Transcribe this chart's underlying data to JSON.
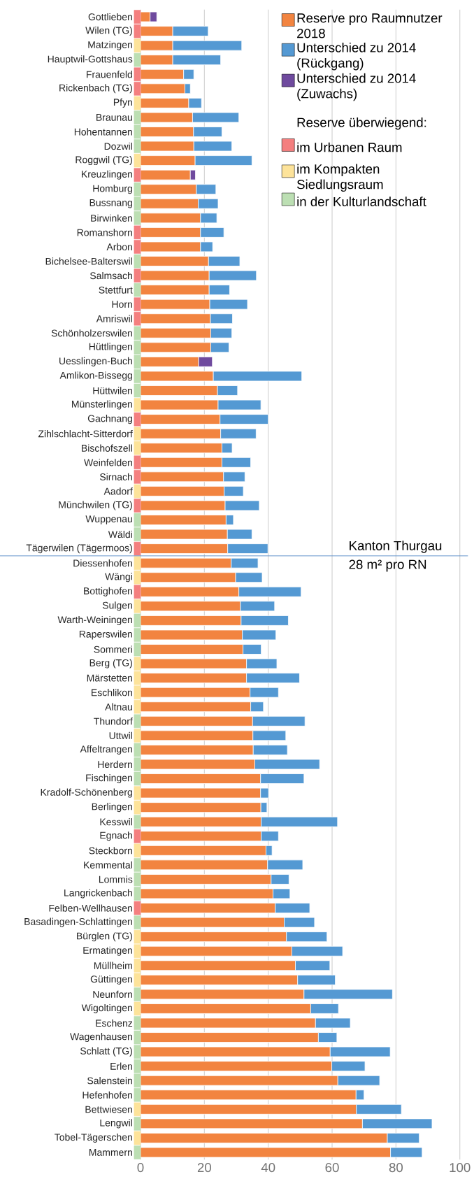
{
  "chart_data": {
    "type": "bar",
    "orientation": "horizontal",
    "stacked": true,
    "categories": [
      "Gottlieben",
      "Wilen (TG)",
      "Matzingen",
      "Hauptwil-Gottshaus",
      "Frauenfeld",
      "Rickenbach (TG)",
      "Pfyn",
      "Braunau",
      "Hohentannen",
      "Dozwil",
      "Roggwil (TG)",
      "Kreuzlingen",
      "Homburg",
      "Bussnang",
      "Birwinken",
      "Romanshorn",
      "Arbon",
      "Bichelsee-Balterswil",
      "Salmsach",
      "Stettfurt",
      "Horn",
      "Amriswil",
      "Schönholzerswilen",
      "Hüttlingen",
      "Uesslingen-Buch",
      "Amlikon-Bissegg",
      "Hüttwilen",
      "Münsterlingen",
      "Gachnang",
      "Zihlschlacht-Sitterdorf",
      "Bischofszell",
      "Weinfelden",
      "Sirnach",
      "Aadorf",
      "Münchwilen (TG)",
      "Wuppenau",
      "Wäldi",
      "Tägerwilen (Tägermoos)",
      "Diessenhofen",
      "Wängi",
      "Bottighofen",
      "Sulgen",
      "Warth-Weiningen",
      "Raperswilen",
      "Sommeri",
      "Berg (TG)",
      "Märstetten",
      "Eschlikon",
      "Altnau",
      "Thundorf",
      "Uttwil",
      "Affeltrangen",
      "Herdern",
      "Fischingen",
      "Kradolf-Schönenberg",
      "Berlingen",
      "Kesswil",
      "Egnach",
      "Steckborn",
      "Kemmental",
      "Lommis",
      "Langrickenbach",
      "Felben-Wellhausen",
      "Basadingen-Schlattingen",
      "Bürglen (TG)",
      "Ermatingen",
      "Müllheim",
      "Güttingen",
      "Neunforn",
      "Wigoltingen",
      "Eschenz",
      "Wagenhausen",
      "Schlatt (TG)",
      "Erlen",
      "Salenstein",
      "Hefenhofen",
      "Bettwiesen",
      "Lengwil",
      "Tobel-Tägerschen",
      "Mammern"
    ],
    "series": [
      {
        "name": "Reserve pro Raumnutzer 2018",
        "color": "#f28440",
        "values": [
          3.0,
          10.1,
          10.1,
          10.1,
          13.5,
          13.9,
          15.1,
          16.3,
          16.6,
          16.7,
          17.1,
          15.6,
          17.5,
          18.1,
          18.8,
          18.8,
          18.8,
          21.3,
          21.5,
          21.5,
          21.7,
          21.9,
          22.0,
          22.0,
          18.2,
          22.8,
          24.1,
          24.3,
          24.9,
          25.1,
          25.5,
          25.5,
          26.0,
          26.2,
          26.5,
          26.8,
          27.2,
          27.3,
          28.4,
          29.8,
          30.8,
          31.3,
          31.5,
          31.9,
          32.1,
          33.2,
          33.2,
          34.3,
          34.5,
          35.1,
          35.2,
          35.3,
          35.8,
          37.6,
          37.6,
          37.7,
          37.8,
          37.8,
          39.3,
          39.8,
          40.9,
          41.5,
          42.2,
          45.0,
          45.7,
          47.4,
          48.5,
          49.2,
          51.2,
          53.3,
          54.8,
          55.7,
          59.4,
          59.9,
          61.8,
          67.5,
          67.6,
          69.5,
          77.3,
          78.3
        ]
      },
      {
        "name": "Unterschied zu 2014 (Rückgang)",
        "color": "#5499d3",
        "values": [
          null,
          11.1,
          21.6,
          15.0,
          3.2,
          1.7,
          4.0,
          14.5,
          8.9,
          11.9,
          17.8,
          null,
          6.1,
          6.2,
          5.1,
          7.3,
          3.8,
          9.8,
          14.8,
          6.4,
          11.8,
          6.9,
          6.6,
          5.7,
          null,
          27.7,
          6.3,
          13.4,
          15.1,
          11.1,
          3.2,
          9.0,
          6.7,
          6.0,
          10.7,
          2.3,
          7.7,
          12.6,
          8.4,
          8.3,
          19.5,
          10.7,
          14.8,
          10.5,
          5.7,
          9.5,
          16.6,
          8.9,
          4.0,
          16.4,
          10.3,
          10.7,
          20.3,
          13.6,
          2.5,
          1.9,
          23.9,
          5.4,
          1.9,
          11.0,
          5.6,
          5.3,
          10.8,
          9.5,
          12.7,
          15.9,
          10.8,
          11.8,
          27.7,
          8.7,
          10.9,
          5.8,
          18.8,
          10.4,
          13.1,
          2.5,
          14.1,
          21.8,
          10.0,
          9.9
        ]
      },
      {
        "name": "Unterschied zu 2014 (Zuwachs)",
        "color": "#6f4a9e",
        "values": [
          2.1,
          null,
          null,
          null,
          null,
          null,
          null,
          null,
          null,
          null,
          null,
          1.6,
          null,
          null,
          null,
          null,
          null,
          null,
          null,
          null,
          null,
          null,
          null,
          null,
          4.3,
          null,
          null,
          null,
          null,
          null,
          null,
          null,
          null,
          null,
          null,
          null,
          null,
          null,
          null,
          null,
          null,
          null,
          null,
          null,
          null,
          null,
          null,
          null,
          null,
          null,
          null,
          null,
          null,
          null,
          null,
          null,
          null,
          null,
          null,
          null,
          null,
          null,
          null,
          null,
          null,
          null,
          null,
          null,
          null,
          null,
          null,
          null,
          null,
          null,
          null,
          null,
          null,
          null,
          null,
          null
        ]
      },
      {
        "name": "im Urbanen Raum",
        "type": "scatter",
        "marker": "square",
        "color": "#f47f7f",
        "values": [
          -1,
          -1,
          null,
          null,
          -1,
          -1,
          null,
          null,
          null,
          null,
          null,
          -1,
          null,
          null,
          null,
          -1,
          -1,
          null,
          -1,
          null,
          -1,
          -1,
          null,
          null,
          null,
          null,
          null,
          null,
          -1,
          null,
          null,
          -1,
          -1,
          null,
          -1,
          null,
          null,
          -1,
          null,
          null,
          -1,
          null,
          null,
          null,
          null,
          null,
          null,
          null,
          null,
          null,
          null,
          null,
          null,
          null,
          null,
          null,
          null,
          -1,
          null,
          null,
          null,
          null,
          -1,
          null,
          null,
          null,
          null,
          null,
          null,
          null,
          null,
          null,
          null,
          null,
          null,
          null,
          null,
          null,
          null,
          null
        ]
      },
      {
        "name": "im Kompakten Siedlungsraum",
        "type": "scatter",
        "marker": "square",
        "color": "#fde39a",
        "values": [
          null,
          null,
          -1,
          null,
          null,
          null,
          -1,
          null,
          null,
          null,
          -1,
          null,
          null,
          null,
          null,
          null,
          null,
          null,
          null,
          null,
          null,
          null,
          null,
          null,
          null,
          null,
          null,
          -1,
          null,
          -1,
          -1,
          null,
          null,
          -1,
          null,
          null,
          null,
          null,
          -1,
          -1,
          null,
          -1,
          null,
          null,
          null,
          -1,
          -1,
          -1,
          -1,
          null,
          -1,
          null,
          null,
          null,
          -1,
          -1,
          null,
          null,
          -1,
          null,
          null,
          null,
          null,
          null,
          -1,
          -1,
          -1,
          -1,
          null,
          -1,
          null,
          null,
          null,
          null,
          null,
          null,
          -1,
          null,
          -1,
          null
        ]
      },
      {
        "name": "in der Kulturlandschaft",
        "type": "scatter",
        "marker": "square",
        "color": "#bcdfb3",
        "values": [
          null,
          null,
          null,
          -1,
          null,
          null,
          null,
          -1,
          -1,
          -1,
          null,
          null,
          -1,
          -1,
          -1,
          null,
          null,
          -1,
          null,
          -1,
          null,
          null,
          -1,
          -1,
          -1,
          -1,
          -1,
          null,
          null,
          null,
          null,
          null,
          null,
          null,
          null,
          -1,
          -1,
          null,
          null,
          null,
          null,
          null,
          -1,
          -1,
          -1,
          null,
          null,
          null,
          null,
          -1,
          null,
          -1,
          -1,
          -1,
          null,
          null,
          -1,
          null,
          null,
          -1,
          -1,
          -1,
          null,
          -1,
          null,
          null,
          null,
          null,
          -1,
          null,
          -1,
          -1,
          -1,
          -1,
          -1,
          -1,
          null,
          -1,
          null,
          -1
        ]
      }
    ],
    "legend_title": "Reserve überwiegend:",
    "xlim": [
      -2,
      100
    ],
    "xticks": [
      0,
      20,
      40,
      60,
      80,
      100
    ],
    "grid": "x",
    "legend": "top right",
    "ref_lines": [
      {
        "axis": "y",
        "value": "Tägerwilen (Tägermoos)",
        "color": "#5b8ec9"
      }
    ],
    "annotations": [
      "Kanton Thurgau",
      "28 m² pro RN"
    ]
  }
}
